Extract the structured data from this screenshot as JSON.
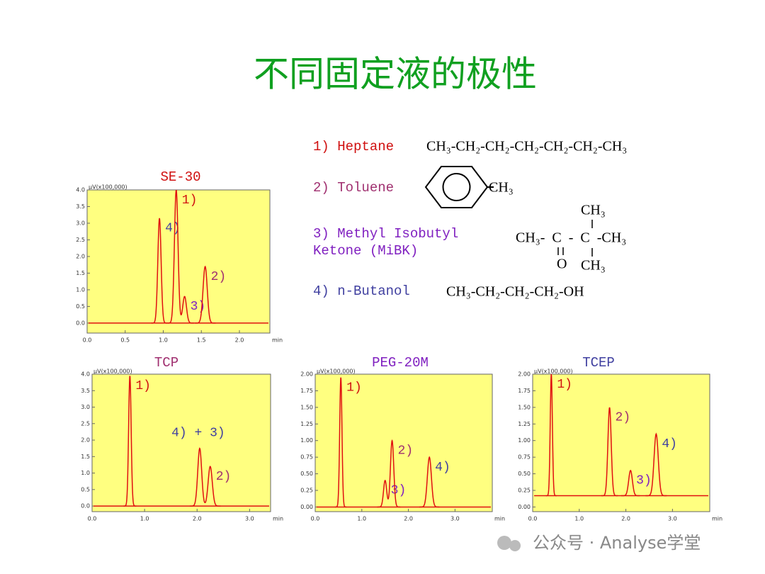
{
  "title": "不同固定液的极性",
  "compounds": [
    {
      "label": [
        "1) Heptane"
      ],
      "color": "#d01010",
      "formula": {
        "main": "CH₃-CH₂-CH₂-CH₂-CH₂-CH₂-CH₃"
      }
    },
    {
      "label": [
        "2)  Toluene"
      ],
      "color": "#a03070",
      "formula": {
        "main": "CH₃"
      }
    },
    {
      "label": [
        "3)  Methyl Isobutyl",
        "Ketone  (MiBK)"
      ],
      "color": "#8020c0",
      "formula": {
        "main": "CH₃-  C  -  C  -CH₃",
        "top": "CH₃",
        "bottom_left": "O",
        "bottom_right": "CH₃"
      }
    },
    {
      "label": [
        "4)  n-Butanol"
      ],
      "color": "#4040a0",
      "formula": {
        "main": "CH₃-CH₂-CH₂-CH₂-OH"
      }
    }
  ],
  "charts": [
    {
      "type": "chromatogram",
      "title": "SE-30",
      "title_color": "#d01010",
      "ylabel": "μV(x100,000)",
      "xlabel": "min",
      "color": "#e01010",
      "xlim": [
        0,
        2.4
      ],
      "ylim": [
        -0.3,
        4.0
      ],
      "baseline": 0,
      "xticks": [
        {
          "value": 0,
          "label": "0.0"
        },
        0.5,
        {
          "value": 1,
          "label": "1.0"
        },
        1.5,
        {
          "value": 2,
          "label": "2.0"
        }
      ],
      "yticks": [
        {
          "value": 0,
          "label": "0.0"
        },
        0.5,
        {
          "value": 1,
          "label": "1.0"
        },
        1.5,
        {
          "value": 2,
          "label": "2.0"
        },
        2.5,
        {
          "value": 3,
          "label": "3.0"
        },
        3.5,
        {
          "value": 4,
          "label": "4.0"
        }
      ],
      "peaks": [
        {
          "label": "4)",
          "color": "#4040a0",
          "x": 0.95,
          "height": 3.15
        },
        {
          "label": "1)",
          "color": "#d01010",
          "x": 1.17,
          "height": 4.0
        },
        {
          "label": "3)",
          "color": "#8020c0",
          "x": 1.28,
          "height": 0.8
        },
        {
          "label": "2)",
          "color": "#a03070",
          "x": 1.55,
          "height": 1.7
        }
      ]
    },
    {
      "type": "chromatogram",
      "title": "TCP",
      "title_color": "#a03070",
      "ylabel": "μV(x100,000)",
      "xlabel": "min",
      "color": "#e01010",
      "xlim": [
        0,
        3.4
      ],
      "ylim": [
        -0.17,
        4.0
      ],
      "baseline": 0,
      "xticks": [
        {
          "value": 0,
          "label": "0.0"
        },
        {
          "value": 1,
          "label": "1.0"
        },
        {
          "value": 2,
          "label": "2.0"
        },
        {
          "value": 3,
          "label": "3.0"
        }
      ],
      "yticks": [
        {
          "value": 0,
          "label": "0.0"
        },
        0.5,
        {
          "value": 1,
          "label": "1.0"
        },
        1.5,
        {
          "value": 2,
          "label": "2.0"
        },
        2.5,
        {
          "value": 3,
          "label": "3.0"
        },
        3.5,
        {
          "value": 4,
          "label": "4.0"
        }
      ],
      "peaks": [
        {
          "label": "1)",
          "color": "#d01010",
          "x": 0.72,
          "height": 3.95
        },
        {
          "label": "4) + 3)",
          "color": "#4040a0",
          "x": 2.05,
          "height": 1.75
        },
        {
          "label": "2)",
          "color": "#a03070",
          "x": 2.25,
          "height": 1.2
        }
      ]
    },
    {
      "type": "chromatogram",
      "title": "PEG-20M",
      "title_color": "#8020c0",
      "ylabel": "μV(x100,000)",
      "xlabel": "min",
      "color": "#e01010",
      "xlim": [
        0,
        3.8
      ],
      "ylim": [
        -0.07,
        2.0
      ],
      "baseline": 0,
      "xticks": [
        {
          "value": 0,
          "label": "0.0"
        },
        {
          "value": 1,
          "label": "1.0"
        },
        {
          "value": 2,
          "label": "2.0"
        },
        {
          "value": 3,
          "label": "3.0"
        }
      ],
      "yticks": [
        {
          "value": 0,
          "label": "0.00"
        },
        0.25,
        {
          "value": 0.5,
          "label": "0.50"
        },
        0.75,
        {
          "value": 1,
          "label": "1.00"
        },
        1.25,
        {
          "value": 1.5,
          "label": "1.50"
        },
        1.75,
        {
          "value": 2,
          "label": "2.00"
        }
      ],
      "peaks": [
        {
          "label": "1)",
          "color": "#d01010",
          "x": 0.55,
          "height": 1.95
        },
        {
          "label": "3)",
          "color": "#8020c0",
          "x": 1.5,
          "height": 0.4
        },
        {
          "label": "2)",
          "color": "#a03070",
          "x": 1.65,
          "height": 1.0
        },
        {
          "label": "4)",
          "color": "#4040a0",
          "x": 2.45,
          "height": 0.75
        }
      ]
    },
    {
      "type": "chromatogram",
      "title": "TCEP",
      "title_color": "#4040a0",
      "ylabel": "μV(x100,000)",
      "xlabel": "min",
      "color": "#e01010",
      "xlim": [
        0,
        3.8
      ],
      "ylim": [
        -0.07,
        2.0
      ],
      "baseline": 0.17,
      "xticks": [
        {
          "value": 0,
          "label": "0.0"
        },
        {
          "value": 1,
          "label": "1.0"
        },
        {
          "value": 2,
          "label": "2.0"
        },
        {
          "value": 3,
          "label": "3.0"
        }
      ],
      "yticks": [
        {
          "value": 0,
          "label": "0.00"
        },
        0.25,
        {
          "value": 0.5,
          "label": "0.50"
        },
        0.75,
        {
          "value": 1,
          "label": "1.00"
        },
        1.25,
        {
          "value": 1.5,
          "label": "1.50"
        },
        1.75,
        {
          "value": 2,
          "label": "2.00"
        }
      ],
      "peaks": [
        {
          "label": "1)",
          "color": "#d01010",
          "x": 0.4,
          "height": 2.0
        },
        {
          "label": "2)",
          "color": "#a03070",
          "x": 1.65,
          "height": 1.5
        },
        {
          "label": "3)",
          "color": "#8020c0",
          "x": 2.1,
          "height": 0.55
        },
        {
          "label": "4)",
          "color": "#4040a0",
          "x": 2.65,
          "height": 1.1
        }
      ]
    }
  ],
  "watermark": "公众号 · Analyse学堂"
}
